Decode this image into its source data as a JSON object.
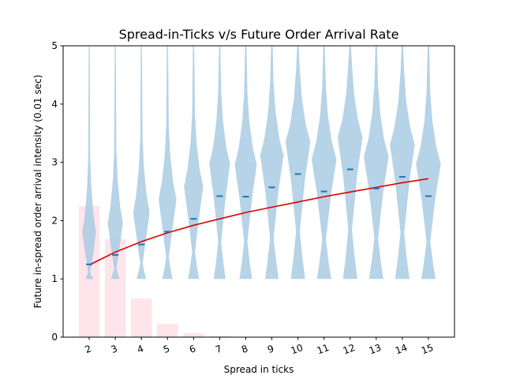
{
  "chart_data": {
    "type": "violin",
    "title": "Spread-in-Ticks v/s Future Order Arrival Rate",
    "xlabel": "Spread in ticks",
    "ylabel": "Future in-spread order arrival intensity (0.01 sec)",
    "ylim": [
      0,
      5
    ],
    "yticks": [
      "0",
      "1",
      "2",
      "3",
      "4",
      "5"
    ],
    "xlim": [
      1,
      16
    ],
    "categories": [
      "2",
      "3",
      "4",
      "5",
      "6",
      "7",
      "8",
      "9",
      "10",
      "11",
      "12",
      "13",
      "14",
      "15"
    ],
    "grid": false,
    "colors": {
      "violin": "#a9cbe3",
      "mean_marker": "#1f77b4",
      "fit_line": "#dd0000",
      "histogram": "#ffe4ec"
    },
    "series": [
      {
        "type": "histogram",
        "x": [
          2,
          3,
          4,
          5,
          6,
          7
        ],
        "values": [
          2.25,
          1.68,
          0.66,
          0.23,
          0.07,
          0.02
        ]
      },
      {
        "type": "violin",
        "x": [
          2,
          3,
          4,
          5,
          6,
          7,
          8,
          9,
          10,
          11,
          12,
          13,
          14,
          15
        ],
        "max_width": [
          0.5,
          0.5,
          0.5,
          0.5,
          0.5,
          0.5,
          0.5,
          0.5,
          0.5,
          0.5,
          0.5,
          0.5,
          0.5,
          0.5
        ],
        "means": [
          1.25,
          1.41,
          1.59,
          1.81,
          2.03,
          2.42,
          2.41,
          2.57,
          2.8,
          2.5,
          2.88,
          2.55,
          2.75,
          2.42
        ]
      },
      {
        "type": "line",
        "x": [
          2,
          3,
          4,
          5,
          6,
          7,
          8,
          9,
          10,
          11,
          12,
          13,
          14,
          15
        ],
        "values": [
          1.24,
          1.46,
          1.64,
          1.79,
          1.92,
          2.03,
          2.14,
          2.23,
          2.32,
          2.41,
          2.49,
          2.57,
          2.65,
          2.72
        ]
      }
    ]
  }
}
